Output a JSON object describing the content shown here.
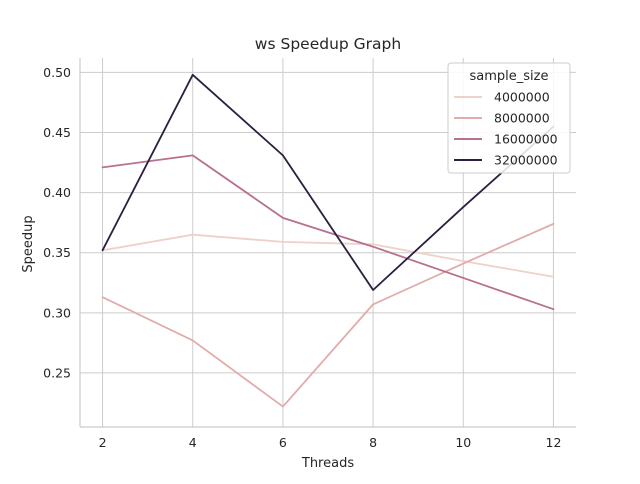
{
  "chart_data": {
    "type": "line",
    "title": "ws Speedup Graph",
    "xlabel": "Threads",
    "ylabel": "Speedup",
    "x": [
      2,
      4,
      6,
      8,
      10,
      12
    ],
    "xlim": [
      1.5,
      12.5
    ],
    "ylim": [
      0.205,
      0.512
    ],
    "xticks": [
      2,
      4,
      6,
      8,
      10,
      12
    ],
    "yticks": [
      0.25,
      0.3,
      0.35,
      0.4,
      0.45,
      0.5
    ],
    "grid": true,
    "legend": {
      "title": "sample_size",
      "placement": "top-right"
    },
    "series": [
      {
        "name": "4000000",
        "color": "#eed1c8",
        "values": [
          0.352,
          0.365,
          0.359,
          0.357,
          0.343,
          0.33
        ]
      },
      {
        "name": "8000000",
        "color": "#e2acab",
        "values": [
          0.313,
          0.277,
          0.222,
          0.307,
          0.341,
          0.374
        ]
      },
      {
        "name": "16000000",
        "color": "#b7708f",
        "values": [
          0.421,
          0.431,
          0.379,
          0.355,
          0.329,
          0.303
        ]
      },
      {
        "name": "32000000",
        "color": "#2b1e3e",
        "values": [
          0.352,
          0.498,
          0.431,
          0.319,
          0.388,
          0.455
        ]
      }
    ]
  }
}
